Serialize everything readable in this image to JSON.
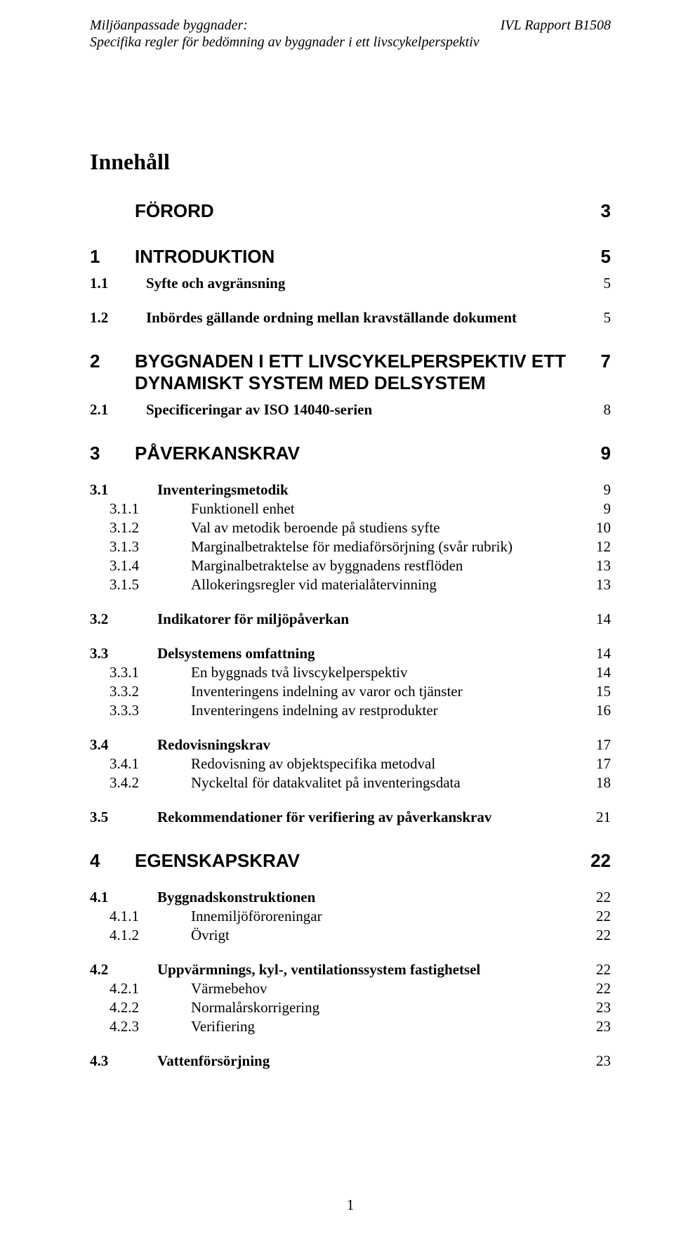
{
  "header": {
    "left_line1": "Miljöanpassade byggnader:",
    "left_line2": "Specifika regler för bedömning av byggnader i ett livscykelperspektiv",
    "right": "IVL Rapport  B1508"
  },
  "title": "Innehåll",
  "toc": [
    {
      "level": "h1",
      "num": "",
      "label": "FÖRORD",
      "page": "3"
    },
    {
      "level": "h1",
      "num": "1",
      "label": "INTRODUKTION",
      "page": "5"
    },
    {
      "level": "h2",
      "num": "1.1",
      "label": "Syfte och avgränsning",
      "page": "5",
      "first": true
    },
    {
      "level": "h2",
      "num": "1.2",
      "label": "Inbördes gällande ordning mellan kravställande dokument",
      "page": "5"
    },
    {
      "level": "h1",
      "num": "2",
      "label": "BYGGNADEN I ETT LIVSCYKELPERSPEKTIV ETT DYNAMISKT SYSTEM MED DELSYSTEM",
      "page": "7"
    },
    {
      "level": "h2",
      "num": "2.1",
      "label": "Specificeringar av ISO 14040-serien",
      "page": "8",
      "first": true
    },
    {
      "level": "h1",
      "num": "3",
      "label": "PÅVERKANSKRAV",
      "page": "9"
    },
    {
      "level": "h3",
      "num": "3.1",
      "label": "Inventeringsmetodik",
      "page": "9",
      "first": true
    },
    {
      "level": "h4",
      "num": "3.1.1",
      "label": "Funktionell enhet",
      "page": "9"
    },
    {
      "level": "h4",
      "num": "3.1.2",
      "label": "Val av metodik beroende på studiens syfte",
      "page": "10"
    },
    {
      "level": "h4",
      "num": "3.1.3",
      "label": "Marginalbetraktelse för mediaförsörjning (svår rubrik)",
      "page": "12"
    },
    {
      "level": "h4",
      "num": "3.1.4",
      "label": "Marginalbetraktelse av byggnadens restflöden",
      "page": "13"
    },
    {
      "level": "h4",
      "num": "3.1.5",
      "label": "Allokeringsregler vid materialåtervinning",
      "page": "13"
    },
    {
      "level": "h3",
      "num": "3.2",
      "label": "Indikatorer för miljöpåverkan",
      "page": "14"
    },
    {
      "level": "h3",
      "num": "3.3",
      "label": "Delsystemens omfattning",
      "page": "14"
    },
    {
      "level": "h4",
      "num": "3.3.1",
      "label": "En byggnads två livscykelperspektiv",
      "page": "14"
    },
    {
      "level": "h4",
      "num": "3.3.2",
      "label": "Inventeringens indelning av varor och tjänster",
      "page": "15"
    },
    {
      "level": "h4",
      "num": "3.3.3",
      "label": "Inventeringens indelning av restprodukter",
      "page": "16"
    },
    {
      "level": "h3",
      "num": "3.4",
      "label": "Redovisningskrav",
      "page": "17"
    },
    {
      "level": "h4",
      "num": "3.4.1",
      "label": "Redovisning av objektspecifika metodval",
      "page": "17"
    },
    {
      "level": "h4",
      "num": "3.4.2",
      "label": "Nyckeltal för datakvalitet på inventeringsdata",
      "page": "18"
    },
    {
      "level": "h3",
      "num": "3.5",
      "label": "Rekommendationer för verifiering av påverkanskrav",
      "page": "21"
    },
    {
      "level": "h1",
      "num": "4",
      "label": "EGENSKAPSKRAV",
      "page": "22"
    },
    {
      "level": "h3",
      "num": "4.1",
      "label": "Byggnadskonstruktionen",
      "page": "22",
      "first": true
    },
    {
      "level": "h4",
      "num": "4.1.1",
      "label": "Innemiljöföroreningar",
      "page": "22"
    },
    {
      "level": "h4",
      "num": "4.1.2",
      "label": "Övrigt",
      "page": "22"
    },
    {
      "level": "h3",
      "num": "4.2",
      "label": "Uppvärmnings, kyl-, ventilationssystem fastighetsel",
      "page": "22"
    },
    {
      "level": "h4",
      "num": "4.2.1",
      "label": "Värmebehov",
      "page": "22"
    },
    {
      "level": "h4",
      "num": "4.2.2",
      "label": "Normalårskorrigering",
      "page": "23"
    },
    {
      "level": "h4",
      "num": "4.2.3",
      "label": "Verifiering",
      "page": "23"
    },
    {
      "level": "h3",
      "num": "4.3",
      "label": "Vattenförsörjning",
      "page": "23"
    }
  ],
  "footer": {
    "page_number": "1"
  }
}
